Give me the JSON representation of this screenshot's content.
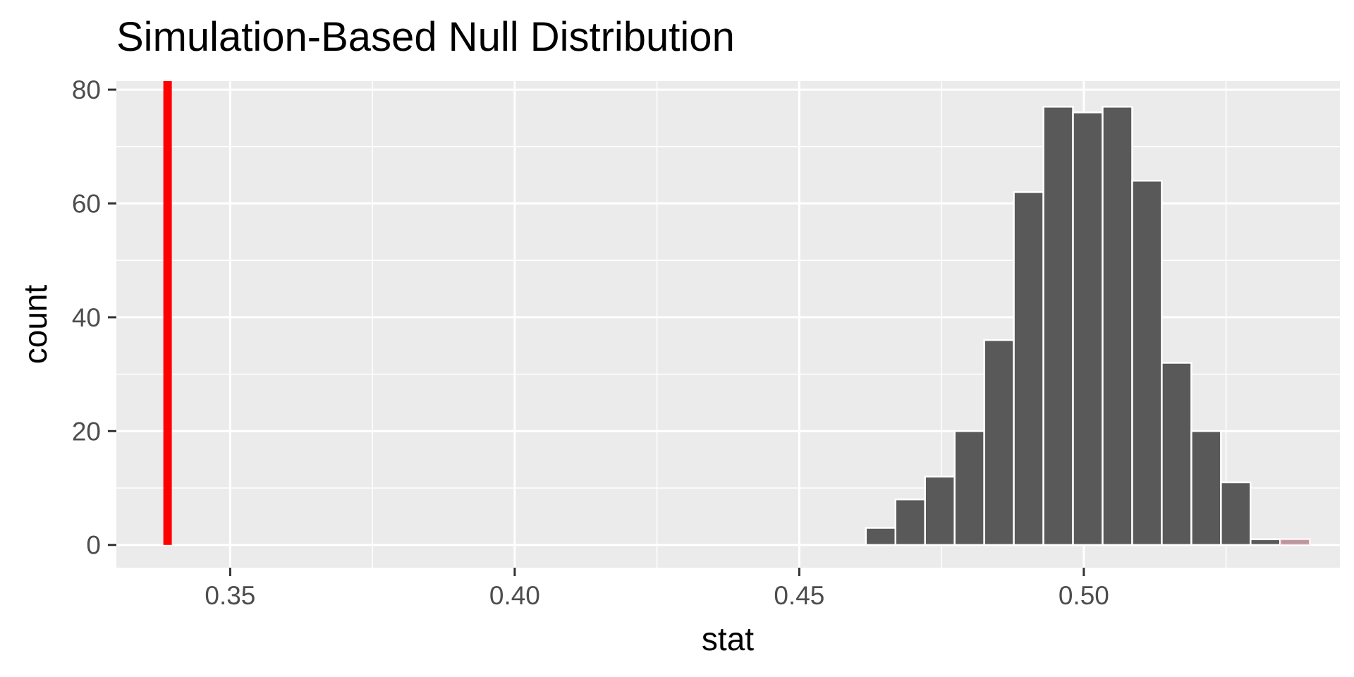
{
  "chart_data": {
    "type": "bar",
    "title": "Simulation-Based Null Distribution",
    "xlabel": "stat",
    "ylabel": "count",
    "xlim": [
      0.33,
      0.545
    ],
    "ylim": [
      -4,
      81.5
    ],
    "x_ticks": [
      0.35,
      0.4,
      0.45,
      0.5
    ],
    "x_tick_labels": [
      "0.35",
      "0.40",
      "0.45",
      "0.50"
    ],
    "y_ticks": [
      0,
      20,
      40,
      60,
      80
    ],
    "y_tick_labels": [
      "0",
      "20",
      "40",
      "60",
      "80"
    ],
    "bin_width": 0.0052,
    "bins": [
      {
        "x": 0.4643,
        "count": 3
      },
      {
        "x": 0.4695,
        "count": 8
      },
      {
        "x": 0.4747,
        "count": 12
      },
      {
        "x": 0.4799,
        "count": 20
      },
      {
        "x": 0.4851,
        "count": 36
      },
      {
        "x": 0.4903,
        "count": 62
      },
      {
        "x": 0.4955,
        "count": 77
      },
      {
        "x": 0.5007,
        "count": 76
      },
      {
        "x": 0.5059,
        "count": 77
      },
      {
        "x": 0.5111,
        "count": 64
      },
      {
        "x": 0.5163,
        "count": 32
      },
      {
        "x": 0.5215,
        "count": 20
      },
      {
        "x": 0.5267,
        "count": 11
      },
      {
        "x": 0.5319,
        "count": 1
      },
      {
        "x": 0.5371,
        "count": 1
      }
    ],
    "observed_stat": 0.339,
    "shaded_bins_from": 0.5371,
    "grid": true,
    "colors": {
      "panel_bg": "#ebebeb",
      "grid_major": "#ffffff",
      "bar_fill": "#595959",
      "bar_outline": "#ffffff",
      "observed_line": "#ff0000",
      "shade": "#ffc0cb"
    }
  }
}
